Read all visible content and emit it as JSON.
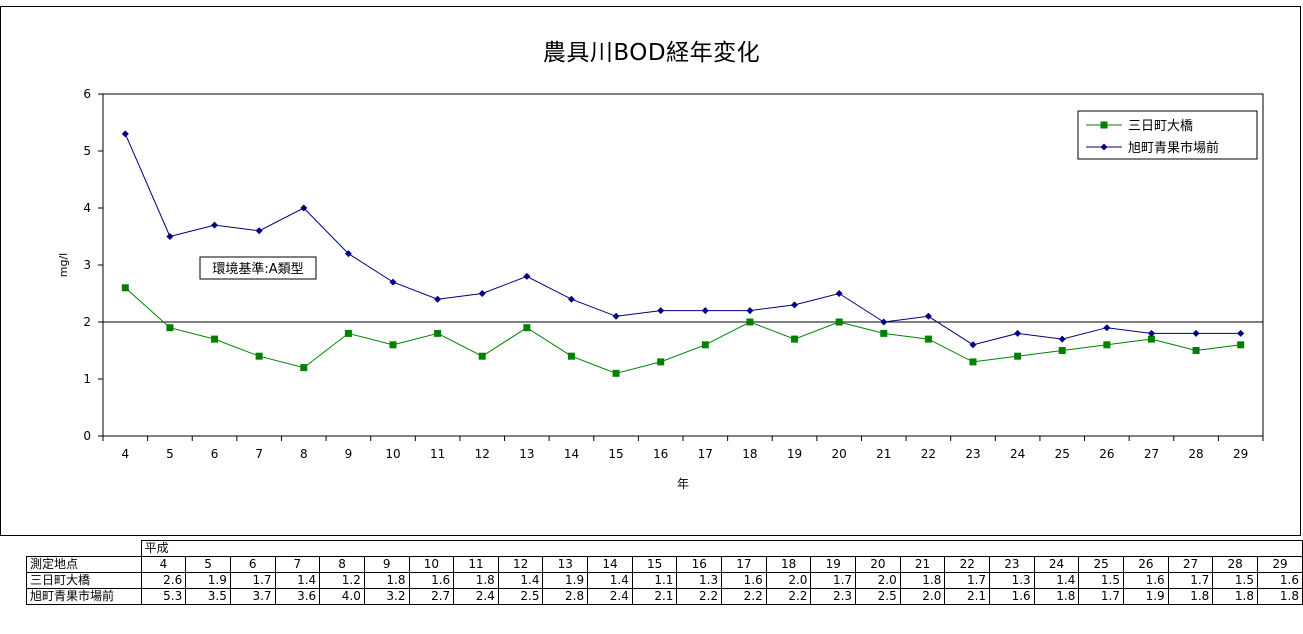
{
  "chart_data": {
    "type": "line",
    "title": "農具川BOD経年変化",
    "xlabel": "年",
    "ylabel": "mg/l",
    "ylim": [
      0,
      6
    ],
    "yticks": [
      "0",
      "1",
      "2",
      "3",
      "4",
      "5",
      "6"
    ],
    "categories": [
      "4",
      "5",
      "6",
      "7",
      "8",
      "9",
      "10",
      "11",
      "12",
      "13",
      "14",
      "15",
      "16",
      "17",
      "18",
      "19",
      "20",
      "21",
      "22",
      "23",
      "24",
      "25",
      "26",
      "27",
      "28",
      "29"
    ],
    "series": [
      {
        "name": "三日町大橋",
        "color": "#008000",
        "marker": "square",
        "values": [
          2.6,
          1.9,
          1.7,
          1.4,
          1.2,
          1.8,
          1.6,
          1.8,
          1.4,
          1.9,
          1.4,
          1.1,
          1.3,
          1.6,
          2.0,
          1.7,
          2.0,
          1.8,
          1.7,
          1.3,
          1.4,
          1.5,
          1.6,
          1.7,
          1.5,
          1.6
        ]
      },
      {
        "name": "旭町青果市場前",
        "color": "#000080",
        "marker": "diamond",
        "values": [
          5.3,
          3.5,
          3.7,
          3.6,
          4.0,
          3.2,
          2.7,
          2.4,
          2.5,
          2.8,
          2.4,
          2.1,
          2.2,
          2.2,
          2.2,
          2.3,
          2.5,
          2.0,
          2.1,
          1.6,
          1.8,
          1.7,
          1.9,
          1.8,
          1.8,
          1.8
        ]
      }
    ],
    "reference_line": {
      "value": 2,
      "label": "環境基準:A類型",
      "color": "#000000"
    },
    "legend": "top-right",
    "grid": false
  },
  "table": {
    "era_label": "平成",
    "header_label": "測定地点",
    "years": [
      "4",
      "5",
      "6",
      "7",
      "8",
      "9",
      "10",
      "11",
      "12",
      "13",
      "14",
      "15",
      "16",
      "17",
      "18",
      "19",
      "20",
      "21",
      "22",
      "23",
      "24",
      "25",
      "26",
      "27",
      "28",
      "29"
    ],
    "rows": [
      {
        "label": "三日町大橋",
        "values": [
          "2.6",
          "1.9",
          "1.7",
          "1.4",
          "1.2",
          "1.8",
          "1.6",
          "1.8",
          "1.4",
          "1.9",
          "1.4",
          "1.1",
          "1.3",
          "1.6",
          "2.0",
          "1.7",
          "2.0",
          "1.8",
          "1.7",
          "1.3",
          "1.4",
          "1.5",
          "1.6",
          "1.7",
          "1.5",
          "1.6"
        ]
      },
      {
        "label": "旭町青果市場前",
        "values": [
          "5.3",
          "3.5",
          "3.7",
          "3.6",
          "4.0",
          "3.2",
          "2.7",
          "2.4",
          "2.5",
          "2.8",
          "2.4",
          "2.1",
          "2.2",
          "2.2",
          "2.2",
          "2.3",
          "2.5",
          "2.0",
          "2.1",
          "1.6",
          "1.8",
          "1.7",
          "1.9",
          "1.8",
          "1.8",
          "1.8"
        ]
      }
    ]
  }
}
